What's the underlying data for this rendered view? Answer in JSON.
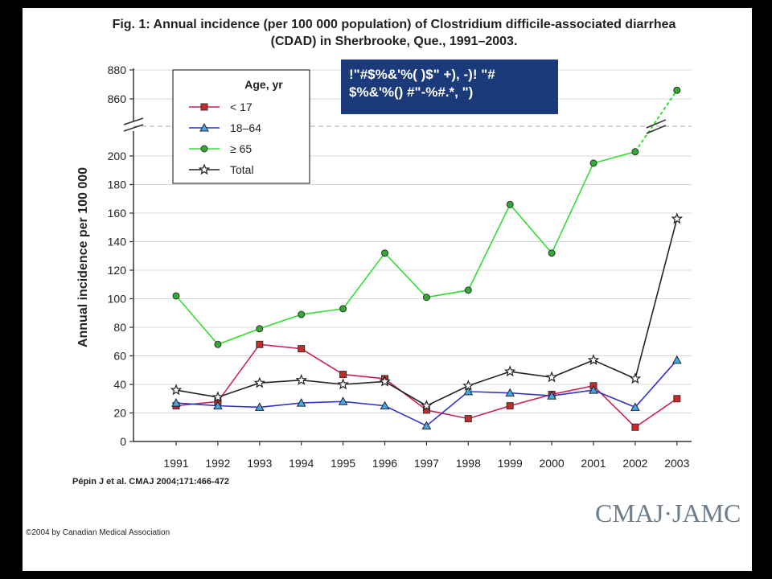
{
  "figure": {
    "title_line1": "Fig. 1: Annual incidence (per 100 000 population) of Clostridium difficile-associated diarrhea",
    "title_line2": "(CDAD) in Sherbrooke, Que., 1991–2003.",
    "citation": "Pépin J et al. CMAJ 2004;171:466-472",
    "copyright": "©2004 by Canadian Medical Association",
    "logo": "CMAJ·JAMC",
    "banner_line1": "!\"#$%&'%( )$\" +), -)! \"#",
    "banner_line2": "$%&'%() #\"-%#.*, \")"
  },
  "chart_data": {
    "type": "line",
    "ylabel": "Annual incidence per 100 000",
    "xlabel": "",
    "x": [
      "1991",
      "1992",
      "1993",
      "1994",
      "1995",
      "1996",
      "1997",
      "1998",
      "1999",
      "2000",
      "2001",
      "2002",
      "2003"
    ],
    "y_ticks_lower": [
      0,
      20,
      40,
      60,
      80,
      100,
      120,
      140,
      160,
      180,
      200
    ],
    "y_ticks_upper": [
      860,
      880
    ],
    "ylim_lower": [
      0,
      210
    ],
    "ylim_upper": [
      840,
      880
    ],
    "axis_break": true,
    "legend_title": "Age, yr",
    "legend_position": "top-left",
    "grid": true,
    "series": [
      {
        "name": "< 17",
        "color": "#cc1f5b",
        "marker": "square",
        "marker_fill": "#cc2a2a",
        "values": [
          25,
          28,
          68,
          65,
          47,
          44,
          22,
          16,
          25,
          33,
          39,
          10,
          30
        ]
      },
      {
        "name": "18–64",
        "color": "#3333cc",
        "marker": "triangle",
        "marker_fill": "#44aadd",
        "values": [
          27,
          25,
          24,
          27,
          28,
          25,
          11,
          35,
          34,
          32,
          36,
          24,
          57
        ]
      },
      {
        "name": "≥ 65",
        "color": "#33dd33",
        "marker": "circle",
        "marker_fill": "#33aa33",
        "values": [
          102,
          68,
          79,
          89,
          93,
          132,
          101,
          106,
          166,
          132,
          195,
          203,
          866
        ]
      },
      {
        "name": "Total",
        "color": "#222222",
        "marker": "star",
        "marker_fill": "#ffffff",
        "values": [
          36,
          31,
          41,
          43,
          40,
          42,
          25,
          39,
          49,
          45,
          57,
          44,
          156
        ]
      }
    ]
  }
}
